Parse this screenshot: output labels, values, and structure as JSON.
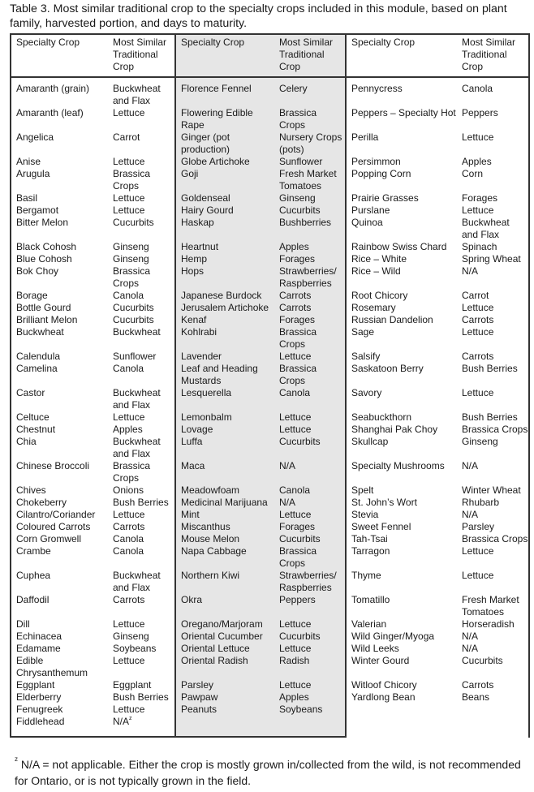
{
  "title": "Table 3. Most similar traditional crop to the specialty crops included in this module, based on plant family, harvested portion, and days to maturity.",
  "headers": [
    "Specialty Crop",
    "Most Similar Traditional Crop",
    "Specialty Crop",
    "Most Similar Traditional Crop",
    "Specialty Crop",
    "Most Similar Traditional Crop"
  ],
  "shaded_color": "#e6e6e6",
  "rows": [
    [
      "Amaranth (grain)",
      "Buckwheat and Flax",
      "Florence Fennel",
      "Celery",
      "Pennycress",
      "Canola"
    ],
    [
      "Amaranth (leaf)",
      "Lettuce",
      "Flowering Edible Rape",
      "Brassica Crops",
      "Peppers – Specialty Hot",
      "Peppers"
    ],
    [
      "Angelica",
      "Carrot",
      "Ginger (pot production)",
      "Nursery Crops (pots)",
      "Perilla",
      "Lettuce"
    ],
    [
      "Anise",
      "Lettuce",
      "Globe Artichoke",
      "Sunflower",
      "Persimmon",
      "Apples"
    ],
    [
      "Arugula",
      "Brassica Crops",
      "Goji",
      "Fresh Market Tomatoes",
      "Popping Corn",
      "Corn"
    ],
    [
      "Basil",
      "Lettuce",
      "Goldenseal",
      "Ginseng",
      "Prairie Grasses",
      "Forages"
    ],
    [
      "Bergamot",
      "Lettuce",
      "Hairy Gourd",
      "Cucurbits",
      "Purslane",
      "Lettuce"
    ],
    [
      "Bitter Melon",
      "Cucurbits",
      "Haskap",
      "Bushberries",
      "Quinoa",
      "Buckwheat and Flax"
    ],
    [
      "Black Cohosh",
      "Ginseng",
      "Heartnut",
      "Apples",
      "Rainbow Swiss Chard",
      "Spinach"
    ],
    [
      "Blue Cohosh",
      "Ginseng",
      "Hemp",
      "Forages",
      "Rice – White",
      "Spring Wheat"
    ],
    [
      "Bok Choy",
      "Brassica Crops",
      "Hops",
      "Strawberries/ Raspberries",
      "Rice – Wild",
      "N/A"
    ],
    [
      "Borage",
      "Canola",
      "Japanese Burdock",
      "Carrots",
      "Root Chicory",
      "Carrot"
    ],
    [
      "Bottle Gourd",
      "Cucurbits",
      "Jerusalem Artichoke",
      "Carrots",
      "Rosemary",
      "Lettuce"
    ],
    [
      "Brilliant Melon",
      "Cucurbits",
      "Kenaf",
      "Forages",
      "Russian Dandelion",
      "Carrots"
    ],
    [
      "Buckwheat",
      "Buckwheat",
      "Kohlrabi",
      "Brassica Crops",
      "Sage",
      "Lettuce"
    ],
    [
      "Calendula",
      "Sunflower",
      "Lavender",
      "Lettuce",
      "Salsify",
      "Carrots"
    ],
    [
      "Camelina",
      "Canola",
      "Leaf and Heading Mustards",
      "Brassica Crops",
      "Saskatoon Berry",
      "Bush Berries"
    ],
    [
      "Castor",
      "Buckwheat and Flax",
      "Lesquerella",
      "Canola",
      "Savory",
      "Lettuce"
    ],
    [
      "Celtuce",
      "Lettuce",
      "Lemonbalm",
      "Lettuce",
      "Seabuckthorn",
      "Bush Berries"
    ],
    [
      "Chestnut",
      "Apples",
      "Lovage",
      "Lettuce",
      "Shanghai Pak Choy",
      "Brassica Crops"
    ],
    [
      "Chia",
      "Buckwheat and Flax",
      "Luffa",
      "Cucurbits",
      "Skullcap",
      "Ginseng"
    ],
    [
      "Chinese Broccoli",
      "Brassica Crops",
      "Maca",
      "N/A",
      "Specialty Mushrooms",
      "N/A"
    ],
    [
      "Chives",
      "Onions",
      "Meadowfoam",
      "Canola",
      "Spelt",
      "Winter Wheat"
    ],
    [
      "Chokeberry",
      "Bush Berries",
      "Medicinal Marijuana",
      "N/A",
      "St. John’s Wort",
      "Rhubarb"
    ],
    [
      "Cilantro/Coriander",
      "Lettuce",
      "Mint",
      "Lettuce",
      "Stevia",
      "N/A"
    ],
    [
      "Coloured Carrots",
      "Carrots",
      "Miscanthus",
      "Forages",
      "Sweet Fennel",
      "Parsley"
    ],
    [
      "Corn Gromwell",
      "Canola",
      "Mouse Melon",
      "Cucurbits",
      "Tah-Tsai",
      "Brassica Crops"
    ],
    [
      "Crambe",
      "Canola",
      "Napa Cabbage",
      "Brassica Crops",
      "Tarragon",
      "Lettuce"
    ],
    [
      "Cuphea",
      "Buckwheat and Flax",
      "Northern Kiwi",
      "Strawberries/ Raspberries",
      "Thyme",
      "Lettuce"
    ],
    [
      "Daffodil",
      "Carrots",
      "Okra",
      "Peppers",
      "Tomatillo",
      "Fresh Market Tomatoes"
    ],
    [
      "Dill",
      "Lettuce",
      "Oregano/Marjoram",
      "Lettuce",
      "Valerian",
      "Horseradish"
    ],
    [
      "Echinacea",
      "Ginseng",
      "Oriental Cucumber",
      "Cucurbits",
      "Wild Ginger/Myoga",
      "N/A"
    ],
    [
      "Edamame",
      "Soybeans",
      "Oriental Lettuce",
      "Lettuce",
      "Wild Leeks",
      "N/A"
    ],
    [
      "Edible Chrysanthemum",
      "Lettuce",
      "Oriental Radish",
      "Radish",
      "Winter Gourd",
      "Cucurbits"
    ],
    [
      "Eggplant",
      "Eggplant",
      "Parsley",
      "Lettuce",
      "Witloof Chicory",
      "Carrots"
    ],
    [
      "Elderberry",
      "Bush Berries",
      "Pawpaw",
      "Apples",
      "Yardlong Bean",
      "Beans"
    ],
    [
      "Fenugreek",
      "Lettuce",
      "Peanuts",
      "Soybeans",
      "",
      ""
    ],
    [
      "Fiddlehead",
      "N/A",
      "",
      "",
      "",
      ""
    ]
  ],
  "fiddlehead_marker": "z",
  "footnote": {
    "marker": "z",
    "text": " N/A = not applicable. Either the crop is mostly grown in/collected from the wild, is not recommended for Ontario, or is not typically grown in the field."
  }
}
